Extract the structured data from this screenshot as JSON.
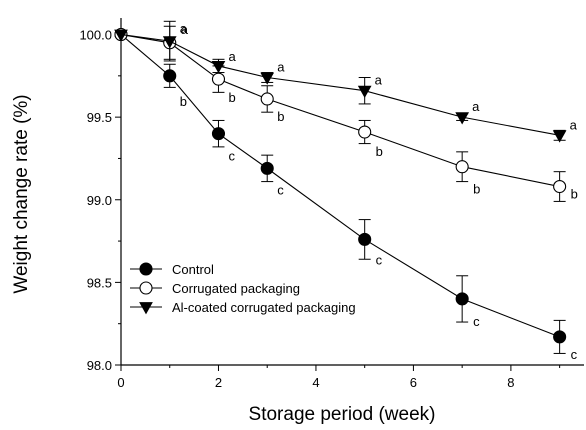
{
  "chart_data": {
    "type": "line",
    "xlabel": "Storage period (week)",
    "ylabel": "Weight change rate (%)",
    "xlim": [
      0,
      9.5
    ],
    "ylim": [
      98.0,
      100.1
    ],
    "xticks": [
      0,
      2,
      4,
      6,
      8
    ],
    "yticks": [
      98.0,
      98.5,
      99.0,
      99.5,
      100.0
    ],
    "xtick_labels": [
      "0",
      "2",
      "4",
      "6",
      "8"
    ],
    "ytick_labels": [
      "98.0",
      "98.5",
      "99.0",
      "99.5",
      "100.0"
    ],
    "grid": false,
    "legend_position": "lower-left",
    "x": [
      0,
      1,
      2,
      3,
      5,
      7,
      9
    ],
    "series": [
      {
        "name": "Control",
        "marker": "filled-circle",
        "values": [
          100.0,
          99.75,
          99.4,
          99.19,
          98.76,
          98.4,
          98.17
        ],
        "errors": [
          0.0,
          0.07,
          0.08,
          0.08,
          0.12,
          0.14,
          0.1
        ],
        "letters": [
          "",
          "b",
          "c",
          "c",
          "c",
          "c",
          "c"
        ]
      },
      {
        "name": "Corrugated packaging",
        "marker": "open-circle",
        "values": [
          100.0,
          99.95,
          99.73,
          99.61,
          99.41,
          99.2,
          99.08
        ],
        "errors": [
          0.0,
          0.1,
          0.08,
          0.08,
          0.07,
          0.09,
          0.09
        ],
        "letters": [
          "",
          "a",
          "b",
          "b",
          "b",
          "b",
          "b"
        ]
      },
      {
        "name": "Al-coated corrugated packaging",
        "marker": "filled-triangle-down",
        "values": [
          100.0,
          99.96,
          99.81,
          99.74,
          99.66,
          99.5,
          99.39
        ],
        "errors": [
          0.0,
          0.12,
          0.04,
          0.03,
          0.08,
          0.02,
          0.03
        ],
        "letters": [
          "",
          "a",
          "a",
          "a",
          "a",
          "a",
          "a"
        ]
      }
    ]
  }
}
